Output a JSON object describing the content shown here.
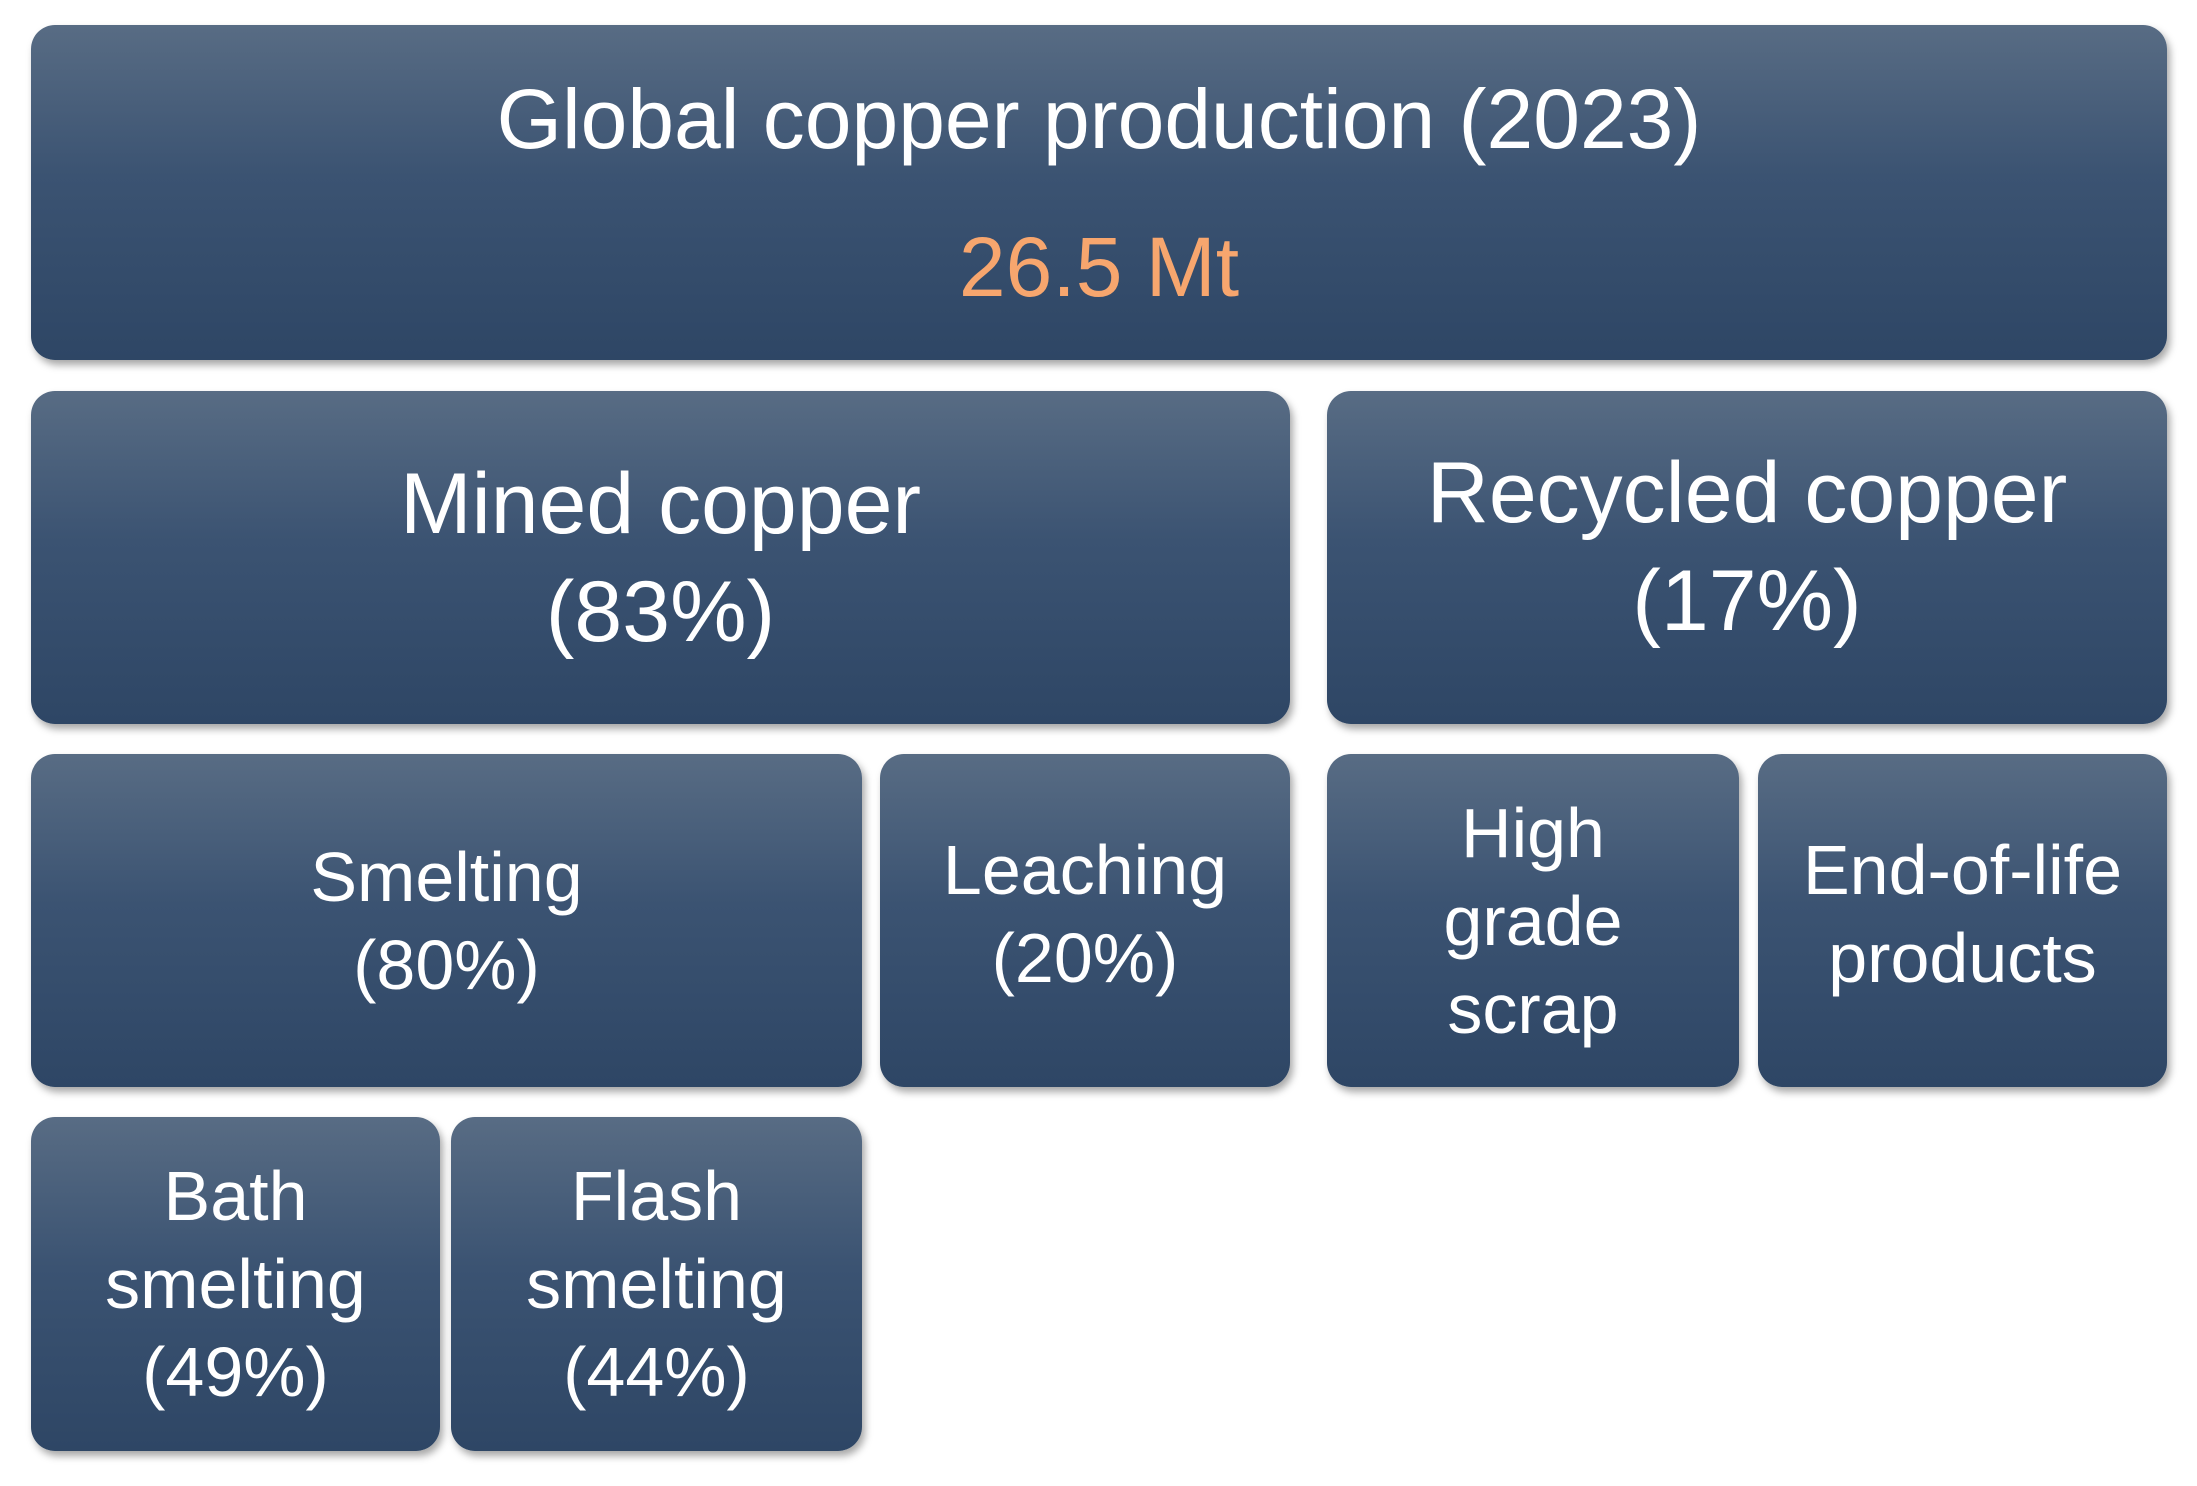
{
  "nodes": [
    {
      "lines": [
        "Global copper production (2023)",
        "26.5 Mt"
      ]
    },
    {
      "lines": [
        "Mined copper",
        "(83%)"
      ]
    },
    {
      "lines": [
        "Recycled copper",
        "(17%)"
      ]
    },
    {
      "lines": [
        "Smelting",
        "(80%)"
      ]
    },
    {
      "lines": [
        "Leaching",
        "(20%)"
      ]
    },
    {
      "lines": [
        "High",
        "grade",
        "scrap"
      ]
    },
    {
      "lines": [
        "End-of-life",
        "products"
      ]
    },
    {
      "lines": [
        "Bath",
        "smelting",
        "(49%)"
      ]
    },
    {
      "lines": [
        "Flash",
        "smelting",
        "(44%)"
      ]
    }
  ]
}
